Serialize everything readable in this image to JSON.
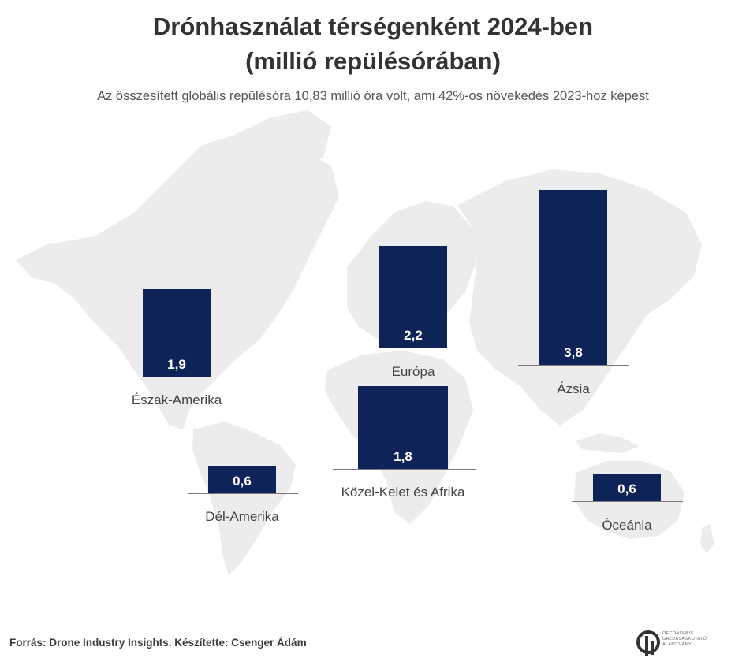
{
  "title_line1": "Drónhasználat térségenként 2024-ben",
  "title_line2": "(millió repülésórában)",
  "subtitle": "Az összesített globális repülésóra 10,83 millió óra volt, ami 42%-os növekedés 2023-hoz képest",
  "source": "Forrás: Drone Industry Insights. Készítette: Csenger Ádám",
  "logo": {
    "lines": [
      "OECONOMUS",
      "GAZDASÁGKUTATÓ",
      "ALAPÍTVÁNY"
    ]
  },
  "colors": {
    "bar": "#0e2358",
    "map": "#ebebeb",
    "title": "#333333"
  },
  "chart_data": {
    "type": "bar",
    "categories": [
      "Észak-Amerika",
      "Európa",
      "Ázsia",
      "Dél-Amerika",
      "Közel-Kelet és Afrika",
      "Óceánia"
    ],
    "values": [
      1.9,
      2.2,
      3.8,
      0.6,
      1.8,
      0.6
    ],
    "value_labels": [
      "1,9",
      "2,2",
      "3,8",
      "0,6",
      "1,8",
      "0,6"
    ]
  }
}
